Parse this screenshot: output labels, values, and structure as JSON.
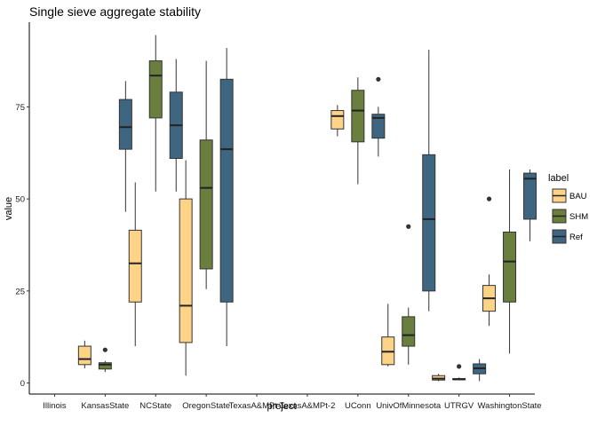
{
  "chart_data": {
    "type": "boxplot",
    "title": "Single sieve aggregate stability",
    "xlabel": "project",
    "ylabel": "value",
    "ylim": [
      -3,
      98
    ],
    "yticks": [
      0,
      25,
      50,
      75
    ],
    "grid": false,
    "legend_position": "right",
    "legend_title": "label",
    "categories": [
      "Illinois",
      "KansasState",
      "NCState",
      "OregonState",
      "TexasA&MPt-1",
      "TexasA&MPt-2",
      "UConn",
      "UnivOfMinnesota",
      "UTRGV",
      "WashingtonState"
    ],
    "tick_labels": [
      "Illinois",
      "KansasState",
      "NCState",
      "OregonState",
      "TexasA&MPt-1",
      "TexasA&MPt-2",
      "UConn",
      "UnivOfMinnesota",
      "UTRGV",
      "WashingtonState"
    ],
    "series": [
      {
        "name": "BAU",
        "color": "#FDD387",
        "boxes": [
          {
            "category": "KansasState",
            "min": 4,
            "q1": 5,
            "median": 6.5,
            "q3": 10,
            "max": 11.5,
            "outliers": []
          },
          {
            "category": "NCState",
            "min": 10,
            "q1": 22,
            "median": 32.5,
            "q3": 41.5,
            "max": 54.5,
            "outliers": []
          },
          {
            "category": "OregonState",
            "min": 2,
            "q1": 11,
            "median": 21,
            "q3": 50,
            "max": 60.5,
            "outliers": []
          },
          {
            "category": "UConn",
            "min": 67,
            "q1": 69,
            "median": 72.5,
            "q3": 74,
            "max": 75.5,
            "outliers": []
          },
          {
            "category": "UnivOfMinnesota",
            "min": 4.5,
            "q1": 5,
            "median": 8.5,
            "q3": 12.5,
            "max": 21.5,
            "outliers": []
          },
          {
            "category": "UTRGV",
            "min": 0.5,
            "q1": 0.8,
            "median": 1.2,
            "q3": 2,
            "max": 2.5,
            "outliers": []
          },
          {
            "category": "WashingtonState",
            "min": 15.5,
            "q1": 19.5,
            "median": 23,
            "q3": 26.5,
            "max": 29.5,
            "outliers": [
              50
            ]
          }
        ]
      },
      {
        "name": "SHM",
        "color": "#6A7E3E",
        "boxes": [
          {
            "category": "KansasState",
            "min": 3,
            "q1": 3.8,
            "median": 5,
            "q3": 5.5,
            "max": 6,
            "outliers": [
              9
            ]
          },
          {
            "category": "NCState",
            "min": 52,
            "q1": 72,
            "median": 83.5,
            "q3": 87.5,
            "max": 94.5,
            "outliers": []
          },
          {
            "category": "OregonState",
            "min": 25.5,
            "q1": 31,
            "median": 53,
            "q3": 66,
            "max": 87.5,
            "outliers": []
          },
          {
            "category": "UConn",
            "min": 54,
            "q1": 65.5,
            "median": 74,
            "q3": 79.5,
            "max": 83,
            "outliers": []
          },
          {
            "category": "UnivOfMinnesota",
            "min": 5,
            "q1": 10,
            "median": 13,
            "q3": 18,
            "max": 20.5,
            "outliers": [
              42.5
            ]
          },
          {
            "category": "UTRGV",
            "min": 0.8,
            "q1": 0.9,
            "median": 1,
            "q3": 1.2,
            "max": 1.5,
            "outliers": [
              4.5
            ]
          },
          {
            "category": "WashingtonState",
            "min": 8,
            "q1": 22,
            "median": 33,
            "q3": 41,
            "max": 58,
            "outliers": []
          }
        ]
      },
      {
        "name": "Ref",
        "color": "#3F6681",
        "boxes": [
          {
            "category": "KansasState",
            "min": 46.5,
            "q1": 63.5,
            "median": 69.5,
            "q3": 77,
            "max": 82,
            "outliers": []
          },
          {
            "category": "NCState",
            "min": 52,
            "q1": 61,
            "median": 70,
            "q3": 79,
            "max": 88,
            "outliers": []
          },
          {
            "category": "OregonState",
            "min": 10,
            "q1": 22,
            "median": 63.5,
            "q3": 82.5,
            "max": 91,
            "outliers": []
          },
          {
            "category": "UConn",
            "min": 61.5,
            "q1": 66.5,
            "median": 72,
            "q3": 73,
            "max": 75,
            "outliers": [
              82.5
            ]
          },
          {
            "category": "UnivOfMinnesota",
            "min": 19.5,
            "q1": 25,
            "median": 44.5,
            "q3": 62,
            "max": 90.5,
            "outliers": []
          },
          {
            "category": "UTRGV",
            "min": 0.5,
            "q1": 2.5,
            "median": 4,
            "q3": 5.2,
            "max": 6.5,
            "outliers": []
          },
          {
            "category": "WashingtonState",
            "min": 38.5,
            "q1": 44.5,
            "median": 55.5,
            "q3": 57,
            "max": 58,
            "outliers": []
          }
        ]
      }
    ]
  }
}
